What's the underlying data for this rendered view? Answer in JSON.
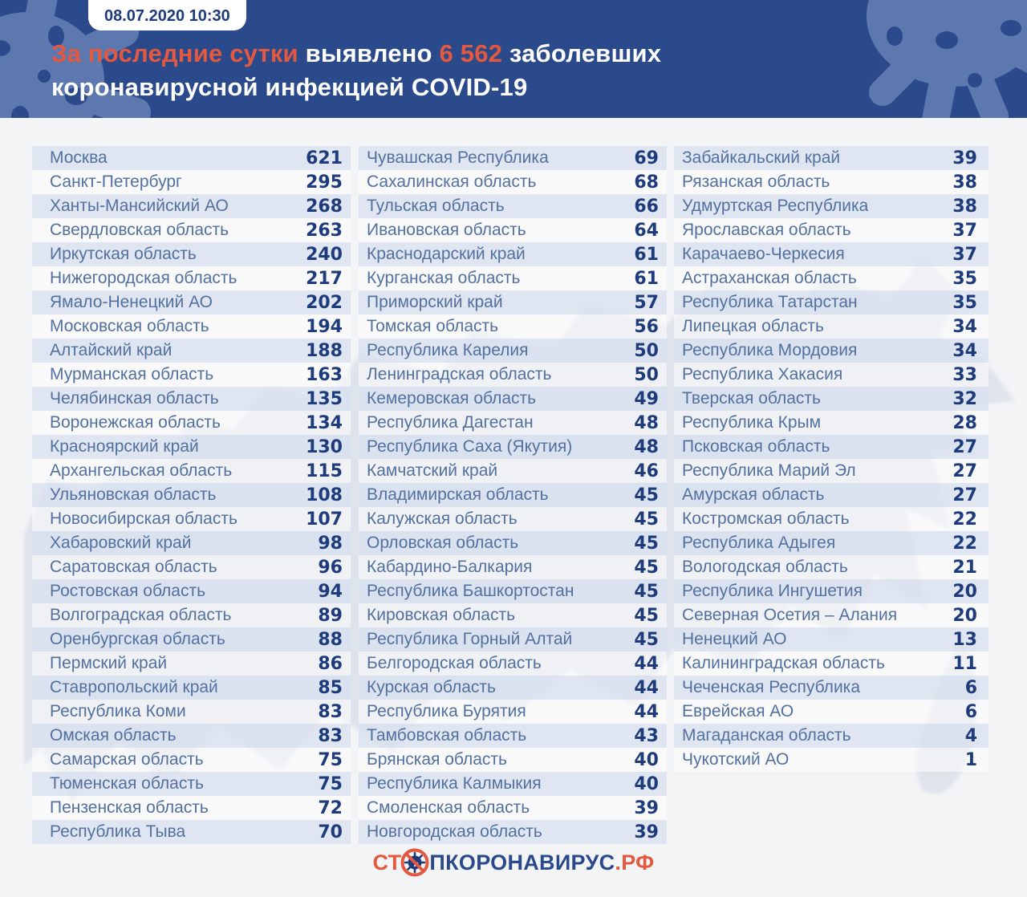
{
  "header": {
    "timestamp": "08.07.2020 10:30",
    "title": {
      "accent1": "За последние сутки",
      "text1": " выявлено ",
      "accent2": "6 562",
      "text2": " заболевших",
      "line2": "коронавирусной инфекцией COVID-19"
    }
  },
  "footer": {
    "logo_prefix": "СТ",
    "logo_virus_icon": "no-virus-icon",
    "logo_main": "ПКОРОНАВИРУС",
    "logo_suffix": ".РФ"
  },
  "colors": {
    "header_bg": "#2b4a8b",
    "blob": "#5d78ae",
    "accent": "#e2593f",
    "number_text": "#1e3c7c",
    "region_text": "#52719f",
    "row_tint": "#dae2ef",
    "page_bg": "#f3f4f6"
  },
  "table": {
    "columns": [
      {
        "rows": [
          {
            "region": "Москва",
            "value": "621"
          },
          {
            "region": "Санкт-Петербург",
            "value": "295"
          },
          {
            "region": "Ханты-Мансийский АО",
            "value": "268"
          },
          {
            "region": "Свердловская область",
            "value": "263"
          },
          {
            "region": "Иркутская область",
            "value": "240"
          },
          {
            "region": "Нижегородская область",
            "value": "217"
          },
          {
            "region": "Ямало-Ненецкий АО",
            "value": "202"
          },
          {
            "region": "Московская область",
            "value": "194"
          },
          {
            "region": "Алтайский край",
            "value": "188"
          },
          {
            "region": "Мурманская область",
            "value": "163"
          },
          {
            "region": "Челябинская область",
            "value": "135"
          },
          {
            "region": "Воронежская область",
            "value": "134"
          },
          {
            "region": "Красноярский край",
            "value": "130"
          },
          {
            "region": "Архангельская область",
            "value": "115"
          },
          {
            "region": "Ульяновская область",
            "value": "108"
          },
          {
            "region": "Новосибирская область",
            "value": "107"
          },
          {
            "region": "Хабаровский край",
            "value": "98"
          },
          {
            "region": "Саратовская область",
            "value": "96"
          },
          {
            "region": "Ростовская область",
            "value": "94"
          },
          {
            "region": "Волгоградская область",
            "value": "89"
          },
          {
            "region": "Оренбургская область",
            "value": "88"
          },
          {
            "region": "Пермский край",
            "value": "86"
          },
          {
            "region": "Ставропольский край",
            "value": "85"
          },
          {
            "region": "Республика Коми",
            "value": "83"
          },
          {
            "region": "Омская область",
            "value": "83"
          },
          {
            "region": "Самарская область",
            "value": "75"
          },
          {
            "region": "Тюменская область",
            "value": "75"
          },
          {
            "region": "Пензенская область",
            "value": "72"
          },
          {
            "region": "Республика Тыва",
            "value": "70"
          }
        ]
      },
      {
        "rows": [
          {
            "region": "Чувашская Республика",
            "value": "69"
          },
          {
            "region": "Сахалинская область",
            "value": "68"
          },
          {
            "region": "Тульская область",
            "value": "66"
          },
          {
            "region": "Ивановская область",
            "value": "64"
          },
          {
            "region": "Краснодарский край",
            "value": "61"
          },
          {
            "region": "Курганская область",
            "value": "61"
          },
          {
            "region": "Приморский край",
            "value": "57"
          },
          {
            "region": "Томская область",
            "value": "56"
          },
          {
            "region": "Республика Карелия",
            "value": "50"
          },
          {
            "region": "Ленинградская область",
            "value": "50"
          },
          {
            "region": "Кемеровская область",
            "value": "49"
          },
          {
            "region": "Республика Дагестан",
            "value": "48"
          },
          {
            "region": "Республика Саха (Якутия)",
            "value": "48"
          },
          {
            "region": "Камчатский край",
            "value": "46"
          },
          {
            "region": "Владимирская область",
            "value": "45"
          },
          {
            "region": "Калужская область",
            "value": "45"
          },
          {
            "region": "Орловская область",
            "value": "45"
          },
          {
            "region": "Кабардино-Балкария",
            "value": "45"
          },
          {
            "region": "Республика Башкортостан",
            "value": "45"
          },
          {
            "region": "Кировская область",
            "value": "45"
          },
          {
            "region": "Республика Горный Алтай",
            "value": "45"
          },
          {
            "region": "Белгородская область",
            "value": "44"
          },
          {
            "region": "Курская область",
            "value": "44"
          },
          {
            "region": "Республика Бурятия",
            "value": "44"
          },
          {
            "region": "Тамбовская область",
            "value": "43"
          },
          {
            "region": "Брянская область",
            "value": "40"
          },
          {
            "region": "Республика Калмыкия",
            "value": "40"
          },
          {
            "region": "Смоленская область",
            "value": "39"
          },
          {
            "region": "Новгородская область",
            "value": "39"
          }
        ]
      },
      {
        "rows": [
          {
            "region": "Забайкальский край",
            "value": "39"
          },
          {
            "region": "Рязанская область",
            "value": "38"
          },
          {
            "region": "Удмуртская Республика",
            "value": "38"
          },
          {
            "region": "Ярославская область",
            "value": "37"
          },
          {
            "region": "Карачаево-Черкесия",
            "value": "37"
          },
          {
            "region": "Астраханская область",
            "value": "35"
          },
          {
            "region": "Республика Татарстан",
            "value": "35"
          },
          {
            "region": "Липецкая область",
            "value": "34"
          },
          {
            "region": "Республика Мордовия",
            "value": "34"
          },
          {
            "region": "Республика Хакасия",
            "value": "33"
          },
          {
            "region": "Тверская область",
            "value": "32"
          },
          {
            "region": "Республика Крым",
            "value": "28"
          },
          {
            "region": "Псковская область",
            "value": "27"
          },
          {
            "region": "Республика Марий Эл",
            "value": "27"
          },
          {
            "region": "Амурская область",
            "value": "27"
          },
          {
            "region": "Костромская область",
            "value": "22"
          },
          {
            "region": "Республика Адыгея",
            "value": "22"
          },
          {
            "region": "Вологодская область",
            "value": "21"
          },
          {
            "region": "Республика Ингушетия",
            "value": "20"
          },
          {
            "region": "Северная Осетия – Алания",
            "value": "20"
          },
          {
            "region": "Ненецкий АО",
            "value": "13"
          },
          {
            "region": "Калининградская область",
            "value": "11"
          },
          {
            "region": "Чеченская Республика",
            "value": "6"
          },
          {
            "region": "Еврейская АО",
            "value": "6"
          },
          {
            "region": "Магаданская область",
            "value": "4"
          },
          {
            "region": "Чукотский АО",
            "value": "1"
          }
        ]
      }
    ]
  },
  "chart_data": {
    "type": "table",
    "title": "За последние сутки выявлено 6 562 заболевших коронавирусной инфекцией COVID-19",
    "timestamp": "08.07.2020 10:30",
    "total_new_cases": 6562,
    "columns": [
      "region",
      "new_cases"
    ],
    "rows": [
      [
        "Москва",
        621
      ],
      [
        "Санкт-Петербург",
        295
      ],
      [
        "Ханты-Мансийский АО",
        268
      ],
      [
        "Свердловская область",
        263
      ],
      [
        "Иркутская область",
        240
      ],
      [
        "Нижегородская область",
        217
      ],
      [
        "Ямало-Ненецкий АО",
        202
      ],
      [
        "Московская область",
        194
      ],
      [
        "Алтайский край",
        188
      ],
      [
        "Мурманская область",
        163
      ],
      [
        "Челябинская область",
        135
      ],
      [
        "Воронежская область",
        134
      ],
      [
        "Красноярский край",
        130
      ],
      [
        "Архангельская область",
        115
      ],
      [
        "Ульяновская область",
        108
      ],
      [
        "Новосибирская область",
        107
      ],
      [
        "Хабаровский край",
        98
      ],
      [
        "Саратовская область",
        96
      ],
      [
        "Ростовская область",
        94
      ],
      [
        "Волгоградская область",
        89
      ],
      [
        "Оренбургская область",
        88
      ],
      [
        "Пермский край",
        86
      ],
      [
        "Ставропольский край",
        85
      ],
      [
        "Республика Коми",
        83
      ],
      [
        "Омская область",
        83
      ],
      [
        "Самарская область",
        75
      ],
      [
        "Тюменская область",
        75
      ],
      [
        "Пензенская область",
        72
      ],
      [
        "Республика Тыва",
        70
      ],
      [
        "Чувашская Республика",
        69
      ],
      [
        "Сахалинская область",
        68
      ],
      [
        "Тульская область",
        66
      ],
      [
        "Ивановская область",
        64
      ],
      [
        "Краснодарский край",
        61
      ],
      [
        "Курганская область",
        61
      ],
      [
        "Приморский край",
        57
      ],
      [
        "Томская область",
        56
      ],
      [
        "Республика Карелия",
        50
      ],
      [
        "Ленинградская область",
        50
      ],
      [
        "Кемеровская область",
        49
      ],
      [
        "Республика Дагестан",
        48
      ],
      [
        "Республика Саха (Якутия)",
        48
      ],
      [
        "Камчатский край",
        46
      ],
      [
        "Владимирская область",
        45
      ],
      [
        "Калужская область",
        45
      ],
      [
        "Орловская область",
        45
      ],
      [
        "Кабардино-Балкария",
        45
      ],
      [
        "Республика Башкортостан",
        45
      ],
      [
        "Кировская область",
        45
      ],
      [
        "Республика Горный Алтай",
        45
      ],
      [
        "Белгородская область",
        44
      ],
      [
        "Курская область",
        44
      ],
      [
        "Республика Бурятия",
        44
      ],
      [
        "Тамбовская область",
        43
      ],
      [
        "Брянская область",
        40
      ],
      [
        "Республика Калмыкия",
        40
      ],
      [
        "Смоленская область",
        39
      ],
      [
        "Новгородская область",
        39
      ],
      [
        "Забайкальский край",
        39
      ],
      [
        "Рязанская область",
        38
      ],
      [
        "Удмуртская Республика",
        38
      ],
      [
        "Ярославская область",
        37
      ],
      [
        "Карачаево-Черкесия",
        37
      ],
      [
        "Астраханская область",
        35
      ],
      [
        "Республика Татарстан",
        35
      ],
      [
        "Липецкая область",
        34
      ],
      [
        "Республика Мордовия",
        34
      ],
      [
        "Республика Хакасия",
        33
      ],
      [
        "Тверская область",
        32
      ],
      [
        "Республика Крым",
        28
      ],
      [
        "Псковская область",
        27
      ],
      [
        "Республика Марий Эл",
        27
      ],
      [
        "Амурская область",
        27
      ],
      [
        "Костромская область",
        22
      ],
      [
        "Республика Адыгея",
        22
      ],
      [
        "Вологодская область",
        21
      ],
      [
        "Республика Ингушетия",
        20
      ],
      [
        "Северная Осетия – Алания",
        20
      ],
      [
        "Ненецкий АО",
        13
      ],
      [
        "Калининградская область",
        11
      ],
      [
        "Чеченская Республика",
        6
      ],
      [
        "Еврейская АО",
        6
      ],
      [
        "Магаданская область",
        4
      ],
      [
        "Чукотский АО",
        1
      ]
    ]
  }
}
